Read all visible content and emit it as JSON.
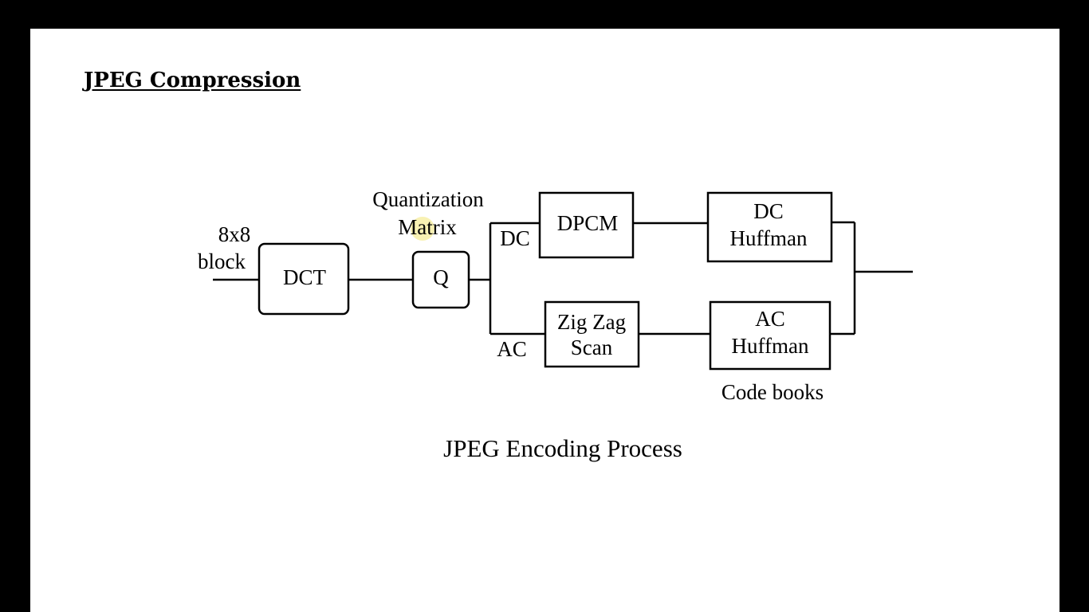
{
  "heading": "JPEG Compression",
  "caption": "JPEG Encoding Process",
  "input_label": {
    "line1": "8x8",
    "line2": "block"
  },
  "quantization_label": {
    "line1": "Quantization",
    "line2": "Matrix"
  },
  "blocks": {
    "dct": "DCT",
    "q": "Q",
    "dpcm": "DPCM",
    "zigzag": {
      "line1": "Zig Zag",
      "line2": "Scan"
    },
    "dc_huffman": {
      "line1": "DC",
      "line2": "Huffman"
    },
    "ac_huffman": {
      "line1": "AC",
      "line2": "Huffman"
    }
  },
  "branch_labels": {
    "dc": "DC",
    "ac": "AC"
  },
  "codebooks_label": "Code books",
  "colors": {
    "background": "#ffffff",
    "frame": "#000000",
    "pointer": "#f6ec9a"
  }
}
